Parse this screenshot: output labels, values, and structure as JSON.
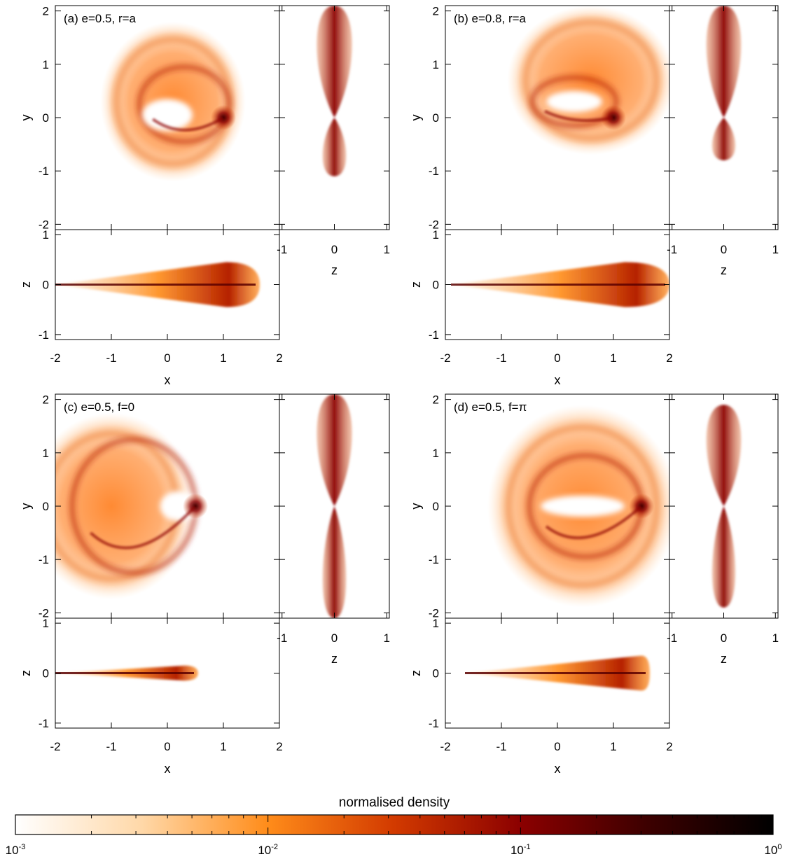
{
  "colorbar": {
    "title": "normalised density",
    "scale": "log",
    "range": [
      0.001,
      1
    ],
    "ticks": [
      {
        "value": 0.001,
        "base": "10",
        "exp": "-3"
      },
      {
        "value": 0.01,
        "base": "10",
        "exp": "-2"
      },
      {
        "value": 0.1,
        "base": "10",
        "exp": "-1"
      },
      {
        "value": 1,
        "base": "10",
        "exp": "0"
      }
    ],
    "colors": [
      "#ffffff",
      "#ffd8a8",
      "#ff8c1a",
      "#d23a00",
      "#8b0000",
      "#3d0000",
      "#000000"
    ]
  },
  "chart_data": [
    {
      "type": "heatmap",
      "title": "(a) e=0.5, r=a",
      "e": 0.5,
      "views": {
        "xy": {
          "xlabel": "",
          "ylabel": "y",
          "xlim": [
            -2,
            2
          ],
          "ylim": [
            -2.1,
            2.1
          ],
          "xticks": [],
          "yticks": [
            -2,
            -1,
            0,
            1,
            2
          ]
        },
        "zy": {
          "xlabel": "z",
          "ylabel": "",
          "xlim": [
            -1.05,
            1.05
          ],
          "ylim": [
            -2.1,
            2.1
          ],
          "xticks": [
            -1,
            0,
            1
          ],
          "yticks": []
        },
        "xz": {
          "xlabel": "x",
          "ylabel": "z",
          "xlim": [
            -2,
            2
          ],
          "ylim": [
            -1.1,
            1.1
          ],
          "xticks": [
            -2,
            -1,
            0,
            1,
            2
          ],
          "yticks": [
            -1,
            0,
            1
          ]
        }
      },
      "structure": {
        "ellipse_center": [
          0.1,
          0.3
        ],
        "ellipse_radii": [
          1.3,
          1.5
        ],
        "pinch": [
          1.0,
          0.0
        ],
        "hole_center": [
          0.0,
          0.05
        ],
        "hole_radii": [
          0.45,
          0.3
        ],
        "inner_loop_center": [
          0.3,
          0.25
        ],
        "inner_loop_radii": [
          0.8,
          0.7
        ],
        "xz_extent": [
          -2.0,
          1.65
        ],
        "xz_peak": 1.05,
        "zy_top": 2.1,
        "zy_bottom": -1.1
      }
    },
    {
      "type": "heatmap",
      "title": "(b) e=0.8, r=a",
      "e": 0.8,
      "views": {
        "xy": {
          "xlabel": "",
          "ylabel": "y",
          "xlim": [
            -2,
            2
          ],
          "ylim": [
            -2.1,
            2.1
          ],
          "xticks": [],
          "yticks": [
            -2,
            -1,
            0,
            1,
            2
          ]
        },
        "zy": {
          "xlabel": "z",
          "ylabel": "",
          "xlim": [
            -1.05,
            1.05
          ],
          "ylim": [
            -2.1,
            2.1
          ],
          "xticks": [
            -1,
            0,
            1
          ],
          "yticks": []
        },
        "xz": {
          "xlabel": "x",
          "ylabel": "z",
          "xlim": [
            -2,
            2
          ],
          "ylim": [
            -1.1,
            1.1
          ],
          "xticks": [
            -2,
            -1,
            0,
            1,
            2
          ],
          "yticks": [
            -1,
            0,
            1
          ]
        }
      },
      "structure": {
        "ellipse_center": [
          0.6,
          0.7
        ],
        "ellipse_radii": [
          1.5,
          1.4
        ],
        "pinch": [
          1.0,
          0.0
        ],
        "hole_center": [
          0.3,
          0.3
        ],
        "hole_radii": [
          0.5,
          0.2
        ],
        "inner_loop_center": [
          0.3,
          0.3
        ],
        "inner_loop_radii": [
          0.75,
          0.45
        ],
        "xz_extent": [
          -1.9,
          2.0
        ],
        "xz_peak": 1.2,
        "zy_top": 2.1,
        "zy_bottom": -0.8
      }
    },
    {
      "type": "heatmap",
      "title": "(c) e=0.5, f=0",
      "e": 0.5,
      "views": {
        "xy": {
          "xlabel": "",
          "ylabel": "y",
          "xlim": [
            -2,
            2
          ],
          "ylim": [
            -2.1,
            2.1
          ],
          "xticks": [],
          "yticks": [
            -2,
            -1,
            0,
            1,
            2
          ]
        },
        "zy": {
          "xlabel": "z",
          "ylabel": "",
          "xlim": [
            -1.05,
            1.05
          ],
          "ylim": [
            -2.1,
            2.1
          ],
          "xticks": [
            -1,
            0,
            1
          ],
          "yticks": []
        },
        "xz": {
          "xlabel": "x",
          "ylabel": "z",
          "xlim": [
            -2,
            2
          ],
          "ylim": [
            -1.1,
            1.1
          ],
          "xticks": [
            -2,
            -1,
            0,
            1,
            2
          ],
          "yticks": [
            -1,
            0,
            1
          ]
        }
      },
      "structure": {
        "ellipse_center": [
          -1.0,
          0.0
        ],
        "ellipse_radii": [
          1.5,
          1.75
        ],
        "pinch": [
          0.5,
          0.0
        ],
        "hole_center": [
          0.2,
          0.0
        ],
        "hole_radii": [
          0.33,
          0.28
        ],
        "inner_loop_center": [
          -0.6,
          0.0
        ],
        "inner_loop_radii": [
          1.1,
          1.25
        ],
        "xz_extent": [
          -2.0,
          0.55
        ],
        "xz_peak": 0.3,
        "zy_top": 2.1,
        "zy_bottom": -2.1
      }
    },
    {
      "type": "heatmap",
      "title": "(d) e=0.5, f=π",
      "e": 0.5,
      "views": {
        "xy": {
          "xlabel": "",
          "ylabel": "y",
          "xlim": [
            -2,
            2
          ],
          "ylim": [
            -2.1,
            2.1
          ],
          "xticks": [],
          "yticks": [
            -2,
            -1,
            0,
            1,
            2
          ]
        },
        "zy": {
          "xlabel": "z",
          "ylabel": "",
          "xlim": [
            -1.05,
            1.05
          ],
          "ylim": [
            -2.1,
            2.1
          ],
          "xticks": [
            -1,
            0,
            1
          ],
          "yticks": []
        },
        "xz": {
          "xlabel": "x",
          "ylabel": "z",
          "xlim": [
            -2,
            2
          ],
          "ylim": [
            -1.1,
            1.1
          ],
          "xticks": [
            -2,
            -1,
            0,
            1,
            2
          ],
          "yticks": [
            -1,
            0,
            1
          ]
        }
      },
      "structure": {
        "ellipse_center": [
          0.45,
          0.0
        ],
        "ellipse_radii": [
          1.7,
          1.9
        ],
        "pinch": [
          1.5,
          0.0
        ],
        "hole_center": [
          0.45,
          0.0
        ],
        "hole_radii": [
          0.75,
          0.2
        ],
        "inner_loop_center": [
          0.5,
          0.0
        ],
        "inner_loop_radii": [
          1.0,
          0.95
        ],
        "xz_extent": [
          -1.65,
          1.65
        ],
        "xz_peak": 1.5,
        "zy_top": 1.9,
        "zy_bottom": -1.9
      }
    }
  ]
}
